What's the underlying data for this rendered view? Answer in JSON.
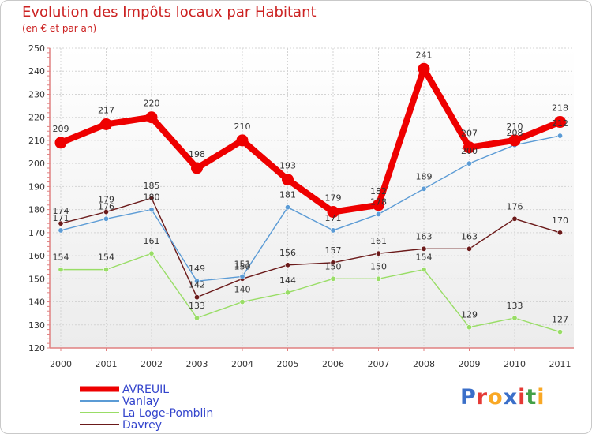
{
  "header": {
    "title": "Evolution des Impôts locaux par Habitant",
    "subtitle": "(en € et par an)"
  },
  "logo": {
    "text": "Proxiti",
    "letters": [
      {
        "ch": "P",
        "color": "#3b6fc9"
      },
      {
        "ch": "r",
        "color": "#e53935"
      },
      {
        "ch": "o",
        "color": "#f9a825"
      },
      {
        "ch": "x",
        "color": "#3b6fc9"
      },
      {
        "ch": "i",
        "color": "#e53935"
      },
      {
        "ch": "t",
        "color": "#43a047"
      },
      {
        "ch": "i",
        "color": "#f9a825"
      }
    ]
  },
  "chart_data": {
    "type": "line",
    "title": "Evolution des Impôts locaux par Habitant",
    "subtitle": "(en € et par an)",
    "xlabel": "",
    "ylabel": "",
    "ylim": [
      120,
      250
    ],
    "yticks": [
      120,
      130,
      140,
      150,
      160,
      170,
      180,
      190,
      200,
      210,
      220,
      230,
      240,
      250
    ],
    "grid": true,
    "legend_position": "bottom-left",
    "categories": [
      "2000",
      "2001",
      "2002",
      "2003",
      "2004",
      "2005",
      "2006",
      "2007",
      "2008",
      "2009",
      "2010",
      "2011"
    ],
    "series": [
      {
        "name": "AVREUIL",
        "color": "#ee0000",
        "values": [
          209,
          217,
          220,
          198,
          210,
          193,
          179,
          182,
          241,
          207,
          210,
          218
        ]
      },
      {
        "name": "Vanlay",
        "color": "#5b9bd5",
        "values": [
          171,
          176,
          180,
          149,
          151,
          181,
          171,
          178,
          189,
          200,
          208,
          212
        ]
      },
      {
        "name": "La Loge-Pomblin",
        "color": "#99dd66",
        "values": [
          154,
          154,
          161,
          133,
          140,
          144,
          150,
          150,
          154,
          129,
          133,
          127
        ]
      },
      {
        "name": "Davrey",
        "color": "#6b1a1a",
        "values": [
          174,
          179,
          185,
          142,
          150,
          156,
          157,
          161,
          163,
          163,
          176,
          170
        ]
      }
    ]
  }
}
